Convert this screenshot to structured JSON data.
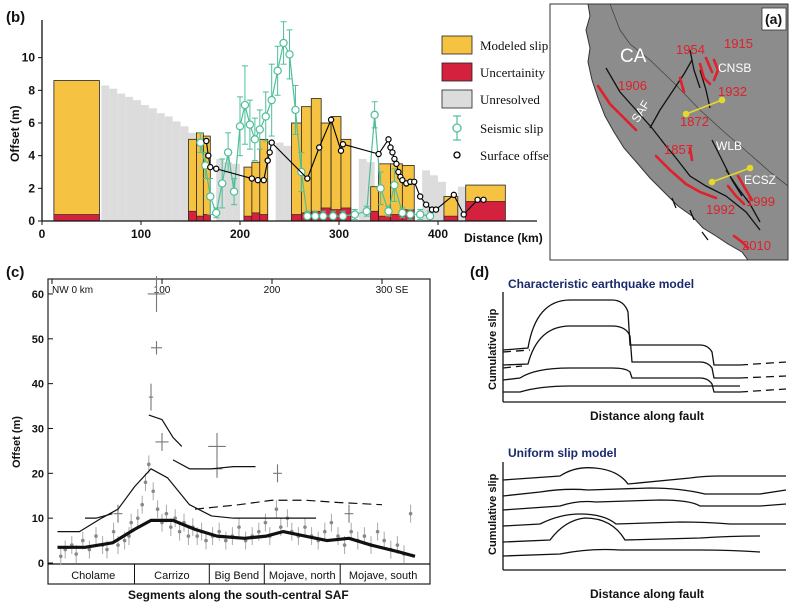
{
  "chart_data": [
    {
      "panel_label": "(b)",
      "type": "bar",
      "xlabel": "Distance (km)",
      "ylabel": "Offset (m)",
      "xlim": [
        0,
        500
      ],
      "ylim": [
        0,
        12
      ],
      "xticks": [
        0,
        100,
        200,
        300,
        400
      ],
      "yticks": [
        0,
        2,
        4,
        6,
        8,
        10
      ],
      "legend": {
        "placement": "top-right",
        "entries": [
          "Modeled slip",
          "Uncertainity",
          "Unresolved",
          "Seismic slip",
          "Surface offset"
        ]
      },
      "colors": {
        "modeled": "#f6c242",
        "uncertainty": "#d4213d",
        "unresolved": "#dcdcdc",
        "seismic": "#4fbf98",
        "surface": "#000000"
      },
      "modeled_slip": [
        {
          "x0": 12,
          "x1": 58,
          "value": 8.6,
          "uncertainty": 0.4
        },
        {
          "x0": 148,
          "x1": 156,
          "value": 5.0,
          "uncertainty": 0.6
        },
        {
          "x0": 156,
          "x1": 163,
          "value": 5.4,
          "uncertainty": 0.3
        },
        {
          "x0": 163,
          "x1": 170,
          "value": 5.2,
          "uncertainty": 0.4
        },
        {
          "x0": 204,
          "x1": 212,
          "value": 3.3,
          "uncertainty": 0.3
        },
        {
          "x0": 212,
          "x1": 220,
          "value": 3.6,
          "uncertainty": 0.5
        },
        {
          "x0": 220,
          "x1": 228,
          "value": 5.0,
          "uncertainty": 0.4
        },
        {
          "x0": 252,
          "x1": 262,
          "value": 6.0,
          "uncertainty": 0.4
        },
        {
          "x0": 262,
          "x1": 272,
          "value": 7.0,
          "uncertainty": 0.5
        },
        {
          "x0": 272,
          "x1": 282,
          "value": 7.5,
          "uncertainty": 0.6
        },
        {
          "x0": 282,
          "x1": 292,
          "value": 6.0,
          "uncertainty": 0.8
        },
        {
          "x0": 292,
          "x1": 302,
          "value": 6.4,
          "uncertainty": 0.7
        },
        {
          "x0": 302,
          "x1": 312,
          "value": 5.0,
          "uncertainty": 0.8
        },
        {
          "x0": 332,
          "x1": 340,
          "value": 2.1,
          "uncertainty": 0.6
        },
        {
          "x0": 340,
          "x1": 352,
          "value": 3.5,
          "uncertainty": 0.3
        },
        {
          "x0": 352,
          "x1": 364,
          "value": 3.5,
          "uncertainty": 0.4
        },
        {
          "x0": 364,
          "x1": 376,
          "value": 3.4,
          "uncertainty": 0.7
        },
        {
          "x0": 406,
          "x1": 420,
          "value": 1.5,
          "uncertainty": 0.3
        },
        {
          "x0": 428,
          "x1": 468,
          "value": 2.2,
          "uncertainty": 1.2
        }
      ],
      "unresolved": [
        {
          "x": 60,
          "value": 8.3
        },
        {
          "x": 68,
          "value": 8.1
        },
        {
          "x": 76,
          "value": 7.8
        },
        {
          "x": 84,
          "value": 7.6
        },
        {
          "x": 92,
          "value": 7.4
        },
        {
          "x": 100,
          "value": 7.1
        },
        {
          "x": 108,
          "value": 6.9
        },
        {
          "x": 116,
          "value": 6.6
        },
        {
          "x": 124,
          "value": 6.4
        },
        {
          "x": 132,
          "value": 6.1
        },
        {
          "x": 140,
          "value": 5.8
        },
        {
          "x": 148,
          "value": 5.4
        },
        {
          "x": 176,
          "value": 3.8
        },
        {
          "x": 184,
          "value": 3.6
        },
        {
          "x": 192,
          "value": 3.5
        },
        {
          "x": 236,
          "value": 4.8
        },
        {
          "x": 244,
          "value": 4.6
        },
        {
          "x": 320,
          "value": 3.8
        },
        {
          "x": 328,
          "value": 3.6
        },
        {
          "x": 384,
          "value": 3.1
        },
        {
          "x": 392,
          "value": 2.8
        },
        {
          "x": 400,
          "value": 2.4
        },
        {
          "x": 420,
          "value": 2.1
        }
      ],
      "seismic_slip": [
        {
          "x": 160,
          "y": 4.8,
          "err": 0.6
        },
        {
          "x": 165,
          "y": 3.4,
          "err": 0.8
        },
        {
          "x": 170,
          "y": 1.5,
          "err": 1.1
        },
        {
          "x": 176,
          "y": 0.5,
          "err": 0.3
        },
        {
          "x": 182,
          "y": 2.3,
          "err": 1.5
        },
        {
          "x": 188,
          "y": 4.2,
          "err": 1.2
        },
        {
          "x": 194,
          "y": 1.8,
          "err": 0.8
        },
        {
          "x": 200,
          "y": 5.8,
          "err": 1.8
        },
        {
          "x": 205,
          "y": 7.1,
          "err": 2.4
        },
        {
          "x": 210,
          "y": 5.9,
          "err": 1.5
        },
        {
          "x": 215,
          "y": 5.0,
          "err": 1.3
        },
        {
          "x": 220,
          "y": 5.6,
          "err": 1.2
        },
        {
          "x": 226,
          "y": 6.4,
          "err": 1.5
        },
        {
          "x": 232,
          "y": 7.4,
          "err": 2.2
        },
        {
          "x": 238,
          "y": 9.2,
          "err": 1.5
        },
        {
          "x": 244,
          "y": 10.9,
          "err": 1.3
        },
        {
          "x": 250,
          "y": 10.2,
          "err": 1.5
        },
        {
          "x": 256,
          "y": 6.8,
          "err": 1.5
        },
        {
          "x": 262,
          "y": 3.0,
          "err": 1.2
        },
        {
          "x": 268,
          "y": 0.3,
          "err": 0.3
        },
        {
          "x": 276,
          "y": 0.3,
          "err": 0.3
        },
        {
          "x": 284,
          "y": 0.3,
          "err": 0.3
        },
        {
          "x": 294,
          "y": 0.3,
          "err": 0.3
        },
        {
          "x": 304,
          "y": 0.3,
          "err": 0.3
        },
        {
          "x": 316,
          "y": 0.4,
          "err": 0.3
        },
        {
          "x": 328,
          "y": 0.6,
          "err": 0.3
        },
        {
          "x": 336,
          "y": 6.5,
          "err": 0.8
        },
        {
          "x": 342,
          "y": 2.0,
          "err": 1.0
        },
        {
          "x": 350,
          "y": 0.6,
          "err": 0.3
        },
        {
          "x": 356,
          "y": 2.2,
          "err": 1.0
        },
        {
          "x": 364,
          "y": 0.5,
          "err": 0.3
        },
        {
          "x": 372,
          "y": 0.4,
          "err": 0.3
        },
        {
          "x": 382,
          "y": 0.4,
          "err": 0.3
        },
        {
          "x": 392,
          "y": 0.3,
          "err": 0.3
        }
      ],
      "surface_offset": [
        {
          "x": 166,
          "y": 4.9
        },
        {
          "x": 168,
          "y": 4.0
        },
        {
          "x": 170,
          "y": 3.3
        },
        {
          "x": 176,
          "y": 3.2
        },
        {
          "x": 212,
          "y": 2.6
        },
        {
          "x": 218,
          "y": 2.5
        },
        {
          "x": 224,
          "y": 2.5
        },
        {
          "x": 228,
          "y": 3.7
        },
        {
          "x": 230,
          "y": 4.2
        },
        {
          "x": 232,
          "y": 4.8
        },
        {
          "x": 268,
          "y": 2.6
        },
        {
          "x": 280,
          "y": 4.5
        },
        {
          "x": 292,
          "y": 6.2
        },
        {
          "x": 302,
          "y": 4.3
        },
        {
          "x": 304,
          "y": 4.7
        },
        {
          "x": 340,
          "y": 4.1
        },
        {
          "x": 350,
          "y": 5.0
        },
        {
          "x": 352,
          "y": 4.5
        },
        {
          "x": 354,
          "y": 4.2
        },
        {
          "x": 356,
          "y": 3.8
        },
        {
          "x": 358,
          "y": 3.5
        },
        {
          "x": 360,
          "y": 3.0
        },
        {
          "x": 362,
          "y": 2.7
        },
        {
          "x": 364,
          "y": 2.5
        },
        {
          "x": 368,
          "y": 2.3
        },
        {
          "x": 372,
          "y": 2.4
        },
        {
          "x": 376,
          "y": 2.4
        },
        {
          "x": 382,
          "y": 1.5
        },
        {
          "x": 388,
          "y": 1.0
        },
        {
          "x": 394,
          "y": 0.7
        },
        {
          "x": 398,
          "y": 0.7
        },
        {
          "x": 416,
          "y": 1.6
        },
        {
          "x": 426,
          "y": 0.4
        },
        {
          "x": 440,
          "y": 1.3
        },
        {
          "x": 446,
          "y": 1.3
        }
      ]
    },
    {
      "panel_label": "(c)",
      "type": "scatter",
      "xlabel": "Segments along the south-central SAF",
      "ylabel": "Offset (m)",
      "xlim": [
        0,
        340
      ],
      "ylim": [
        0,
        62
      ],
      "yticks": [
        0,
        10,
        20,
        30,
        40,
        50,
        60
      ],
      "top_axis_labels": [
        "NW 0 km",
        "100",
        "200",
        "300 SE"
      ],
      "top_axis_values": [
        0,
        100,
        200,
        300
      ],
      "segments": [
        {
          "name": "Cholame",
          "x0": 0,
          "x1": 75
        },
        {
          "name": "Carrizo",
          "x0": 75,
          "x1": 143
        },
        {
          "name": "Big Bend",
          "x0": 143,
          "x1": 193
        },
        {
          "name": "Mojave, north",
          "x0": 193,
          "x1": 262
        },
        {
          "name": "Mojave, south",
          "x0": 262,
          "x1": 340
        }
      ],
      "curves": [
        {
          "name": "cumulative-1 (bold)",
          "points": [
            [
              5,
              3.5
            ],
            [
              30,
              3.5
            ],
            [
              55,
              4.5
            ],
            [
              75,
              7.5
            ],
            [
              90,
              9.5
            ],
            [
              110,
              9.5
            ],
            [
              130,
              7.5
            ],
            [
              150,
              6
            ],
            [
              175,
              5.5
            ],
            [
              195,
              6
            ],
            [
              210,
              7
            ],
            [
              230,
              6
            ],
            [
              250,
              5
            ],
            [
              270,
              5.5
            ],
            [
              290,
              4
            ],
            [
              315,
              2.5
            ],
            [
              330,
              1.5
            ]
          ]
        },
        {
          "name": "cumulative-2",
          "points": [
            [
              5,
              7
            ],
            [
              25,
              7
            ],
            [
              45,
              10
            ],
            [
              60,
              12
            ],
            [
              75,
              17
            ],
            [
              90,
              21
            ],
            [
              105,
              19
            ],
            [
              125,
              13
            ],
            [
              145,
              10.5
            ],
            [
              165,
              10
            ],
            [
              190,
              10
            ],
            [
              215,
              10
            ],
            [
              240,
              10
            ]
          ]
        },
        {
          "name": "cumulative-3 (dashed)",
          "points": [
            [
              130,
              12
            ],
            [
              150,
              12.5
            ],
            [
              170,
              13
            ],
            [
              200,
              14
            ],
            [
              230,
              14
            ],
            [
              260,
              13.5
            ],
            [
              300,
              13
            ]
          ]
        },
        {
          "name": "cumulative-4",
          "points": [
            [
              30,
              10
            ],
            [
              40,
              10
            ],
            [
              55,
              11
            ]
          ]
        },
        {
          "name": "cumulative-5",
          "points": [
            [
              110,
              23
            ],
            [
              125,
              21
            ],
            [
              145,
              21
            ],
            [
              165,
              21.5
            ],
            [
              185,
              21.5
            ]
          ]
        },
        {
          "name": "cumulative-6",
          "points": [
            [
              88,
              33
            ],
            [
              100,
              32
            ],
            [
              110,
              28
            ],
            [
              118,
              26
            ]
          ]
        }
      ],
      "error_bar_points": [
        {
          "x": 95,
          "y": 60,
          "dx": 8,
          "dy": 4
        },
        {
          "x": 95,
          "y": 48,
          "dx": 5,
          "dy": 1.5
        },
        {
          "x": 100,
          "y": 27,
          "dx": 6,
          "dy": 2
        },
        {
          "x": 150,
          "y": 26,
          "dx": 8,
          "dy": 3
        },
        {
          "x": 150,
          "y": 21,
          "dx": 5,
          "dy": 2
        },
        {
          "x": 60,
          "y": 11,
          "dx": 4,
          "dy": 2
        },
        {
          "x": 205,
          "y": 20,
          "dx": 4,
          "dy": 2
        },
        {
          "x": 90,
          "y": 37,
          "dx": 2,
          "dy": 3
        },
        {
          "x": 270,
          "y": 11,
          "dx": 4,
          "dy": 2
        }
      ],
      "scatter_points": [
        [
          8,
          1.5
        ],
        [
          12,
          3
        ],
        [
          18,
          4
        ],
        [
          22,
          2
        ],
        [
          28,
          5
        ],
        [
          34,
          3
        ],
        [
          40,
          6
        ],
        [
          46,
          4
        ],
        [
          50,
          3
        ],
        [
          56,
          7
        ],
        [
          60,
          4
        ],
        [
          66,
          5
        ],
        [
          70,
          6
        ],
        [
          72,
          9
        ],
        [
          78,
          10
        ],
        [
          82,
          13
        ],
        [
          85,
          18
        ],
        [
          88,
          22
        ],
        [
          92,
          16
        ],
        [
          96,
          12
        ],
        [
          100,
          9
        ],
        [
          104,
          11
        ],
        [
          108,
          8
        ],
        [
          112,
          10
        ],
        [
          116,
          7
        ],
        [
          120,
          9
        ],
        [
          124,
          6
        ],
        [
          128,
          8
        ],
        [
          132,
          6
        ],
        [
          136,
          7
        ],
        [
          140,
          5
        ],
        [
          146,
          6
        ],
        [
          152,
          7
        ],
        [
          158,
          5
        ],
        [
          164,
          6
        ],
        [
          170,
          8
        ],
        [
          176,
          5
        ],
        [
          182,
          6
        ],
        [
          188,
          7
        ],
        [
          194,
          9
        ],
        [
          198,
          6
        ],
        [
          204,
          12
        ],
        [
          208,
          8
        ],
        [
          214,
          10
        ],
        [
          218,
          7
        ],
        [
          224,
          6
        ],
        [
          230,
          8
        ],
        [
          236,
          6
        ],
        [
          242,
          5
        ],
        [
          248,
          7
        ],
        [
          254,
          9
        ],
        [
          260,
          6
        ],
        [
          266,
          4
        ],
        [
          272,
          7
        ],
        [
          278,
          5
        ],
        [
          284,
          6
        ],
        [
          290,
          4
        ],
        [
          296,
          7
        ],
        [
          302,
          5
        ],
        [
          308,
          3
        ],
        [
          314,
          4
        ],
        [
          320,
          2
        ],
        [
          326,
          11
        ]
      ]
    },
    {
      "panel_label": "(d)",
      "type": "line",
      "panels": [
        {
          "title": "Characteristic earthquake model",
          "xlabel": "Distance along fault",
          "ylabel": "Cumulative slip"
        },
        {
          "title": "Uniform slip model",
          "xlabel": "Distance along fault",
          "ylabel": "Cumulative slip"
        }
      ]
    }
  ],
  "map": {
    "panel_label": "(a)",
    "region_label": "CA",
    "fault_labels": [
      "SAF",
      "CNSB",
      "WLB",
      "ECSZ"
    ],
    "earthquake_years": [
      "1954",
      "1915",
      "1906",
      "1932",
      "1872",
      "1857",
      "1999",
      "1992",
      "2010"
    ],
    "colors": {
      "land": "#8c8c8c",
      "ocean": "#ffffff",
      "rupture": "#e0202a",
      "section": "#e6d82a"
    }
  }
}
